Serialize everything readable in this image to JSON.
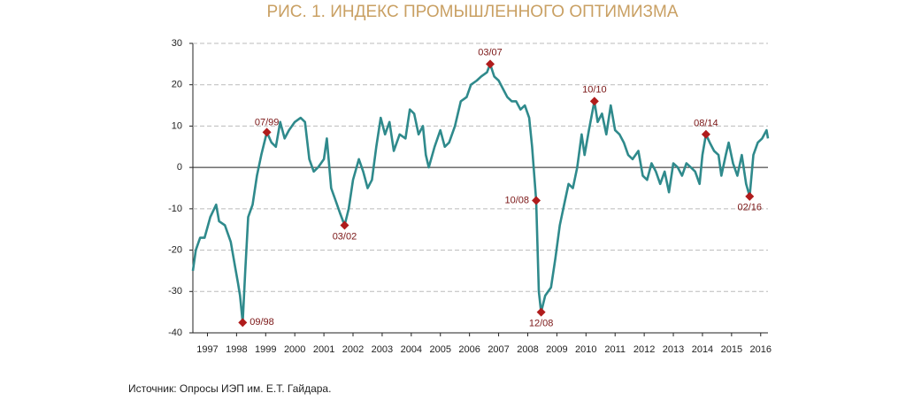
{
  "chart_data": {
    "type": "line",
    "title": "РИС. 1. ИНДЕКС ПРОМЫШЛЕННОГО ОПТИМИЗМА",
    "source": "Источник: Опросы ИЭП им. Е.Т. Гайдара.",
    "xlim": [
      1997,
      2016.75
    ],
    "xticks": [
      {
        "value": 1997.5,
        "label": "1997"
      },
      {
        "value": 1998.5,
        "label": "1998"
      },
      {
        "value": 1999.5,
        "label": "1999"
      },
      {
        "value": 2000.5,
        "label": "2000"
      },
      {
        "value": 2001.5,
        "label": "2001"
      },
      {
        "value": 2002.5,
        "label": "2002"
      },
      {
        "value": 2003.5,
        "label": "2003"
      },
      {
        "value": 2004.5,
        "label": "2004"
      },
      {
        "value": 2005.5,
        "label": "2005"
      },
      {
        "value": 2006.5,
        "label": "2006"
      },
      {
        "value": 2007.5,
        "label": "2007"
      },
      {
        "value": 2008.5,
        "label": "2008"
      },
      {
        "value": 2009.5,
        "label": "2009"
      },
      {
        "value": 2010.5,
        "label": "2010"
      },
      {
        "value": 2011.5,
        "label": "2011"
      },
      {
        "value": 2012.5,
        "label": "2012"
      },
      {
        "value": 2013.5,
        "label": "2013"
      },
      {
        "value": 2014.5,
        "label": "2014"
      },
      {
        "value": 2015.5,
        "label": "2015"
      },
      {
        "value": 2016.5,
        "label": "2016"
      }
    ],
    "ylim": [
      -40,
      30
    ],
    "yticks": [
      -40,
      -30,
      -20,
      -10,
      0,
      10,
      20,
      30
    ],
    "grid": true,
    "series": [
      {
        "name": "Индекс промышленного оптимизма",
        "color": "#2f8a8c",
        "x": [
          1997.0,
          1997.1,
          1997.25,
          1997.4,
          1997.6,
          1997.8,
          1997.9,
          1998.1,
          1998.3,
          1998.45,
          1998.55,
          1998.62,
          1998.71,
          1998.8,
          1998.9,
          1999.05,
          1999.2,
          1999.35,
          1999.54,
          1999.7,
          1999.85,
          2000.0,
          2000.15,
          2000.3,
          2000.5,
          2000.7,
          2000.85,
          2001.0,
          2001.15,
          2001.3,
          2001.5,
          2001.6,
          2001.75,
          2001.9,
          2002.05,
          2002.21,
          2002.35,
          2002.5,
          2002.7,
          2002.85,
          2003.0,
          2003.15,
          2003.3,
          2003.45,
          2003.6,
          2003.75,
          2003.9,
          2004.1,
          2004.3,
          2004.45,
          2004.6,
          2004.75,
          2004.9,
          2005.0,
          2005.1,
          2005.3,
          2005.5,
          2005.65,
          2005.8,
          2006.0,
          2006.2,
          2006.4,
          2006.55,
          2006.75,
          2006.9,
          2007.1,
          2007.21,
          2007.35,
          2007.5,
          2007.65,
          2007.8,
          2007.95,
          2008.1,
          2008.25,
          2008.4,
          2008.55,
          2008.65,
          2008.79,
          2008.88,
          2008.96,
          2009.1,
          2009.3,
          2009.45,
          2009.6,
          2009.75,
          2009.9,
          2010.05,
          2010.2,
          2010.35,
          2010.45,
          2010.6,
          2010.79,
          2010.9,
          2011.05,
          2011.2,
          2011.35,
          2011.5,
          2011.65,
          2011.8,
          2011.95,
          2012.1,
          2012.3,
          2012.45,
          2012.6,
          2012.75,
          2012.9,
          2013.05,
          2013.2,
          2013.35,
          2013.5,
          2013.65,
          2013.8,
          2013.95,
          2014.1,
          2014.25,
          2014.4,
          2014.5,
          2014.62,
          2014.75,
          2014.9,
          2015.05,
          2015.15,
          2015.3,
          2015.4,
          2015.55,
          2015.7,
          2015.85,
          2016.0,
          2016.12,
          2016.25,
          2016.4,
          2016.55,
          2016.7,
          2016.75
        ],
        "values": [
          -25,
          -20,
          -17,
          -17,
          -12,
          -9,
          -13,
          -14,
          -18,
          -24,
          -28,
          -31,
          -37.5,
          -25,
          -12,
          -9,
          -2,
          3,
          8.5,
          6,
          5,
          11,
          7,
          9,
          11,
          12,
          11,
          2,
          -1,
          0,
          2,
          7,
          -5,
          -8,
          -11,
          -14,
          -10,
          -3,
          2,
          -1,
          -5,
          -3,
          5,
          12,
          8,
          11,
          4,
          8,
          7,
          14,
          13,
          8,
          10,
          3,
          0,
          5,
          9,
          5,
          6,
          10,
          16,
          17,
          20,
          21,
          22,
          23,
          25,
          22,
          21,
          19,
          17,
          16,
          16,
          14,
          15,
          12,
          5,
          -8,
          -30,
          -35,
          -31,
          -29,
          -22,
          -14,
          -9,
          -4,
          -5,
          0,
          8,
          3,
          9,
          16,
          11,
          13,
          8,
          15,
          9,
          8,
          6,
          3,
          2,
          4,
          -2,
          -3,
          1,
          -1,
          -4,
          -1,
          -6,
          1,
          0,
          -2,
          1,
          0,
          -1,
          -4,
          3,
          8,
          6,
          4,
          3,
          -2,
          3,
          6,
          1,
          -2,
          3,
          -4,
          -7,
          3,
          6,
          7,
          9,
          7
        ]
      }
    ],
    "annotations": [
      {
        "label": "09/98",
        "x": 1998.71,
        "y": -37.5
      },
      {
        "label": "07/99",
        "x": 1999.54,
        "y": 8.5
      },
      {
        "label": "03/02",
        "x": 2002.21,
        "y": -14
      },
      {
        "label": "03/07",
        "x": 2007.21,
        "y": 25
      },
      {
        "label": "10/08",
        "x": 2008.79,
        "y": -8
      },
      {
        "label": "12/08",
        "x": 2008.96,
        "y": -35
      },
      {
        "label": "10/10",
        "x": 2010.79,
        "y": 16
      },
      {
        "label": "08/14",
        "x": 2014.62,
        "y": 8
      },
      {
        "label": "02/16",
        "x": 2016.12,
        "y": -7
      }
    ],
    "annotation_color": "#b01c1c"
  }
}
